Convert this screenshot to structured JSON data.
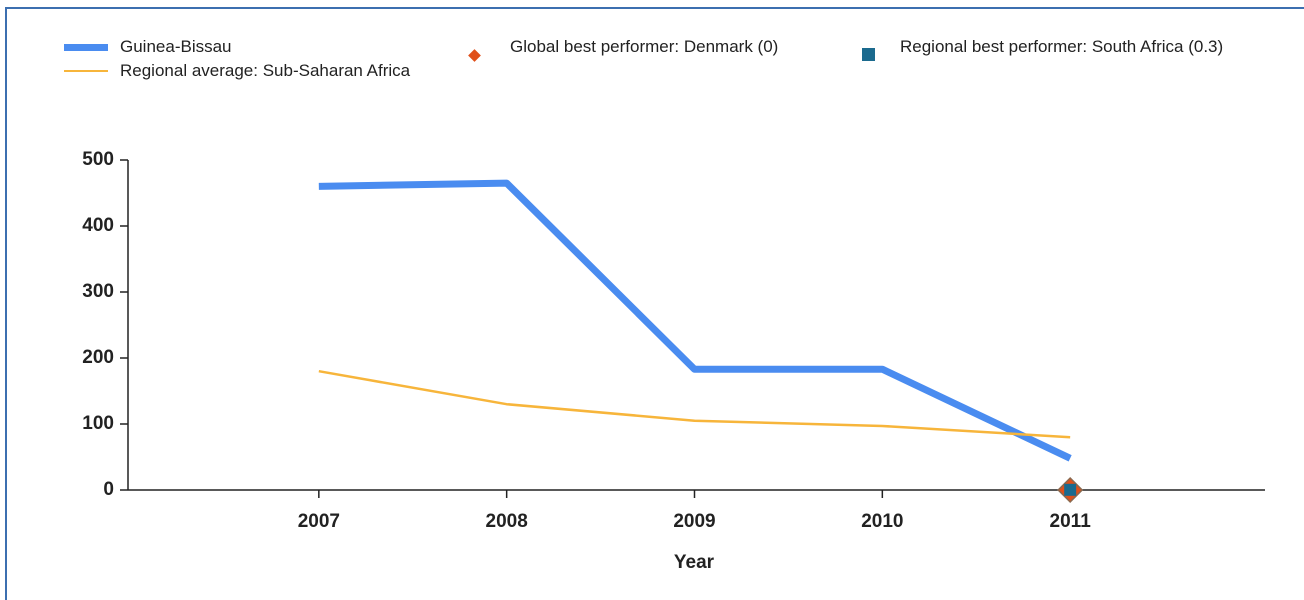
{
  "chart_data": {
    "type": "line",
    "x_label": "Year",
    "x": [
      2007,
      2008,
      2009,
      2010,
      2011
    ],
    "series": [
      {
        "name": "Guinea-Bissau",
        "color": "#4a8cf0",
        "values": [
          460,
          465,
          183,
          183,
          48
        ],
        "marker": "line"
      },
      {
        "name": "Regional average: Sub-Saharan Africa",
        "color": "#f7b53b",
        "values": [
          180,
          130,
          105,
          97,
          80
        ],
        "marker": "line"
      },
      {
        "name": "Global best performer: Denmark (0)",
        "color": "#e0501a",
        "x": [
          2011
        ],
        "values": [
          0
        ],
        "marker": "diamond"
      },
      {
        "name": "Regional best performer: South Africa (0.3)",
        "color": "#1b6a8e",
        "x": [
          2011
        ],
        "values": [
          0.3
        ],
        "marker": "square"
      }
    ],
    "xlim": [
      2006,
      2012
    ],
    "xticks": [
      2007,
      2008,
      2009,
      2010,
      2011
    ],
    "ylim": [
      0,
      500
    ],
    "yticks": [
      0,
      100,
      200,
      300,
      400,
      500
    ],
    "grid": false
  }
}
